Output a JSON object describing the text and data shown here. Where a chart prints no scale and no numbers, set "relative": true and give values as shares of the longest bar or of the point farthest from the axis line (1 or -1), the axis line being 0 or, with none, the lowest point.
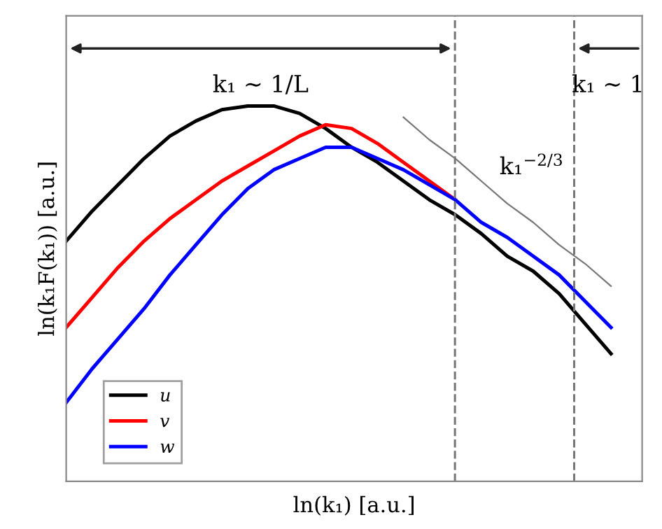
{
  "chart_data": {
    "type": "line",
    "relative": true,
    "xlabel": "ln(k₁) [a.u.]",
    "ylabel": "ln(k₁F(k₁)) [a.u.]",
    "categories": [
      null,
      null,
      null,
      null,
      null,
      null,
      null,
      null,
      null,
      null,
      null,
      null,
      null,
      null,
      null,
      null,
      null,
      null,
      null,
      null,
      null,
      null
    ],
    "series": [
      {
        "name": "u",
        "color": "#000000",
        "values": [
          0.64,
          0.72,
          0.79,
          0.86,
          0.92,
          0.96,
          0.99,
          1,
          1.0,
          0.98,
          0.94,
          0.89,
          0.85,
          0.8,
          0.75,
          0.71,
          0.66,
          0.6,
          0.56,
          0.5,
          0.42,
          0.34
        ]
      },
      {
        "name": "v",
        "color": "#ff0000",
        "values": [
          0.41,
          0.49,
          0.57,
          0.64,
          0.7,
          0.75,
          0.8,
          0.84,
          0.88,
          0.92,
          0.95,
          0.94,
          0.9,
          0.85,
          0.8,
          0.75,
          null,
          null,
          null,
          null,
          null,
          null
        ]
      },
      {
        "name": "w",
        "color": "#0000ff",
        "values": [
          0.21,
          0.3,
          0.38,
          0.46,
          0.55,
          0.63,
          0.71,
          0.78,
          0.83,
          0.86,
          0.89,
          0.89,
          0.86,
          0.83,
          0.79,
          0.75,
          0.69,
          0.65,
          0.6,
          0.55,
          0.48,
          0.41
        ]
      },
      {
        "type": "line",
        "color": "#777777",
        "values": [
          null,
          null,
          null,
          null,
          null,
          null,
          null,
          null,
          null,
          null,
          null,
          null,
          null,
          0.97,
          0.91,
          0.86,
          0.8,
          0.74,
          0.69,
          0.63,
          0.58,
          0.52
        ]
      }
    ],
    "annotations": [
      "k₁ ∼ 1/L",
      "k₁ ∼ 1",
      "k₁$^{−2/3}$"
    ],
    "legend": "bottom left",
    "grid": false,
    "marker": "none",
    "line_style": "solid"
  }
}
